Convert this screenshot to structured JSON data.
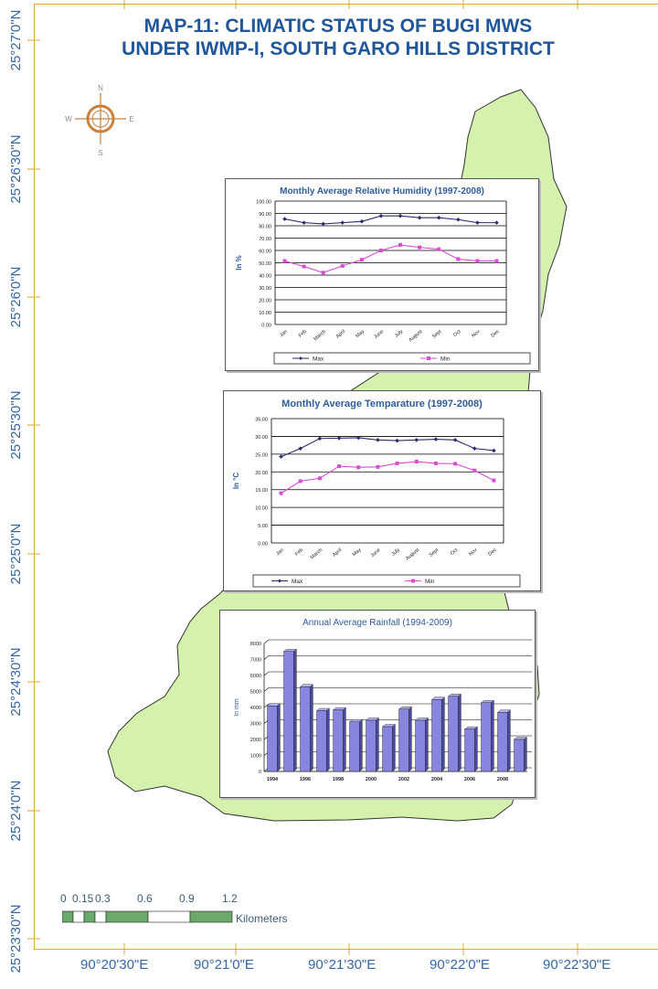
{
  "map": {
    "title_line1": "MAP-11: CLIMATIC STATUS OF BUGI MWS",
    "title_line2": "UNDER IWMP-I, SOUTH GARO HILLS DISTRICT",
    "latitudes": [
      "25°27'0\"N",
      "25°26'30\"N",
      "25°26'0\"N",
      "25°25'30\"N",
      "25°25'0\"N",
      "25°24'30\"N",
      "25°24'0\"N",
      "25°23'30\"N"
    ],
    "longitudes": [
      "90°20'30\"E",
      "90°21'0\"E",
      "90°21'30\"E",
      "90°22'0\"E",
      "90°22'30\"E"
    ],
    "compass": {
      "n": "N",
      "s": "S",
      "e": "E",
      "w": "W"
    },
    "scale": {
      "ticks": [
        "0",
        "0.15",
        "0.3",
        "0.6",
        "0.9",
        "1.2"
      ],
      "unit": "Kilometers"
    },
    "colors": {
      "frame": "#e2a73a",
      "watershed": "#d4f2ae",
      "label": "#3566a3",
      "title": "#20579b"
    }
  },
  "chart_data": [
    {
      "type": "line",
      "title": "Monthly Average Relative Humidity (1997-2008)",
      "ylabel": "In %",
      "ylim": [
        0,
        100
      ],
      "yticks": [
        "0.00",
        "10.00",
        "20.00",
        "30.00",
        "40.00",
        "50.00",
        "60.00",
        "70.00",
        "80.00",
        "90.00",
        "100.00"
      ],
      "categories": [
        "Jan",
        "Feb",
        "March",
        "April",
        "May",
        "June",
        "July",
        "August",
        "Sept",
        "Oct",
        "Nov",
        "Dec"
      ],
      "series": [
        {
          "name": "Max",
          "color": "#2b2c6e",
          "marker": "diamond",
          "values": [
            85.5,
            82.5,
            81.5,
            82.5,
            83.5,
            88.0,
            88.0,
            86.5,
            86.5,
            85.0,
            82.5,
            82.5
          ]
        },
        {
          "name": "Min",
          "color": "#d94bd3",
          "marker": "square",
          "values": [
            51.5,
            47.0,
            42.0,
            47.5,
            52.5,
            60.0,
            64.5,
            62.5,
            61.0,
            53.0,
            51.5,
            51.5
          ]
        }
      ]
    },
    {
      "type": "line",
      "title": "Monthly Average Temparature (1997-2008)",
      "ylabel": "In °C",
      "ylim": [
        0,
        35
      ],
      "yticks": [
        "0.00",
        "5.00",
        "10.00",
        "15.00",
        "20.00",
        "25.00",
        "30.00",
        "35.00"
      ],
      "categories": [
        "Jan",
        "Feb",
        "March",
        "April",
        "May",
        "June",
        "July",
        "August",
        "Sept",
        "Oct",
        "Nov",
        "Dec"
      ],
      "series": [
        {
          "name": "Max",
          "color": "#2b2c6e",
          "marker": "diamond",
          "values": [
            24.3,
            26.6,
            29.4,
            29.5,
            29.6,
            29.0,
            28.8,
            29.0,
            29.2,
            29.0,
            26.6,
            26.0
          ]
        },
        {
          "name": "Min",
          "color": "#d94bd3",
          "marker": "square",
          "values": [
            14.0,
            17.4,
            18.2,
            21.6,
            21.3,
            21.4,
            22.4,
            22.9,
            22.4,
            22.3,
            20.4,
            17.6
          ]
        }
      ]
    },
    {
      "type": "bar",
      "title": "Annual Average Rainfall (1994-2009)",
      "ylabel": "In mm",
      "ylim": [
        0,
        8000
      ],
      "yticks": [
        "0",
        "1000",
        "2000",
        "3000",
        "4000",
        "5000",
        "6000",
        "7000",
        "8000"
      ],
      "categories": [
        "1994",
        "1995",
        "1996",
        "1997",
        "1998",
        "1999",
        "2000",
        "2001",
        "2002",
        "2003",
        "2004",
        "2005",
        "2006",
        "2007",
        "2008",
        "2009"
      ],
      "xticks": [
        "1994",
        "1996",
        "1998",
        "2000",
        "2002",
        "2004",
        "2006",
        "2008"
      ],
      "series": [
        {
          "name": "",
          "color": "#8686e0",
          "values": [
            4100,
            7500,
            5300,
            3800,
            3850,
            3100,
            3200,
            2800,
            3900,
            3200,
            4500,
            4700,
            2650,
            4300,
            3700,
            2000
          ]
        }
      ]
    }
  ]
}
